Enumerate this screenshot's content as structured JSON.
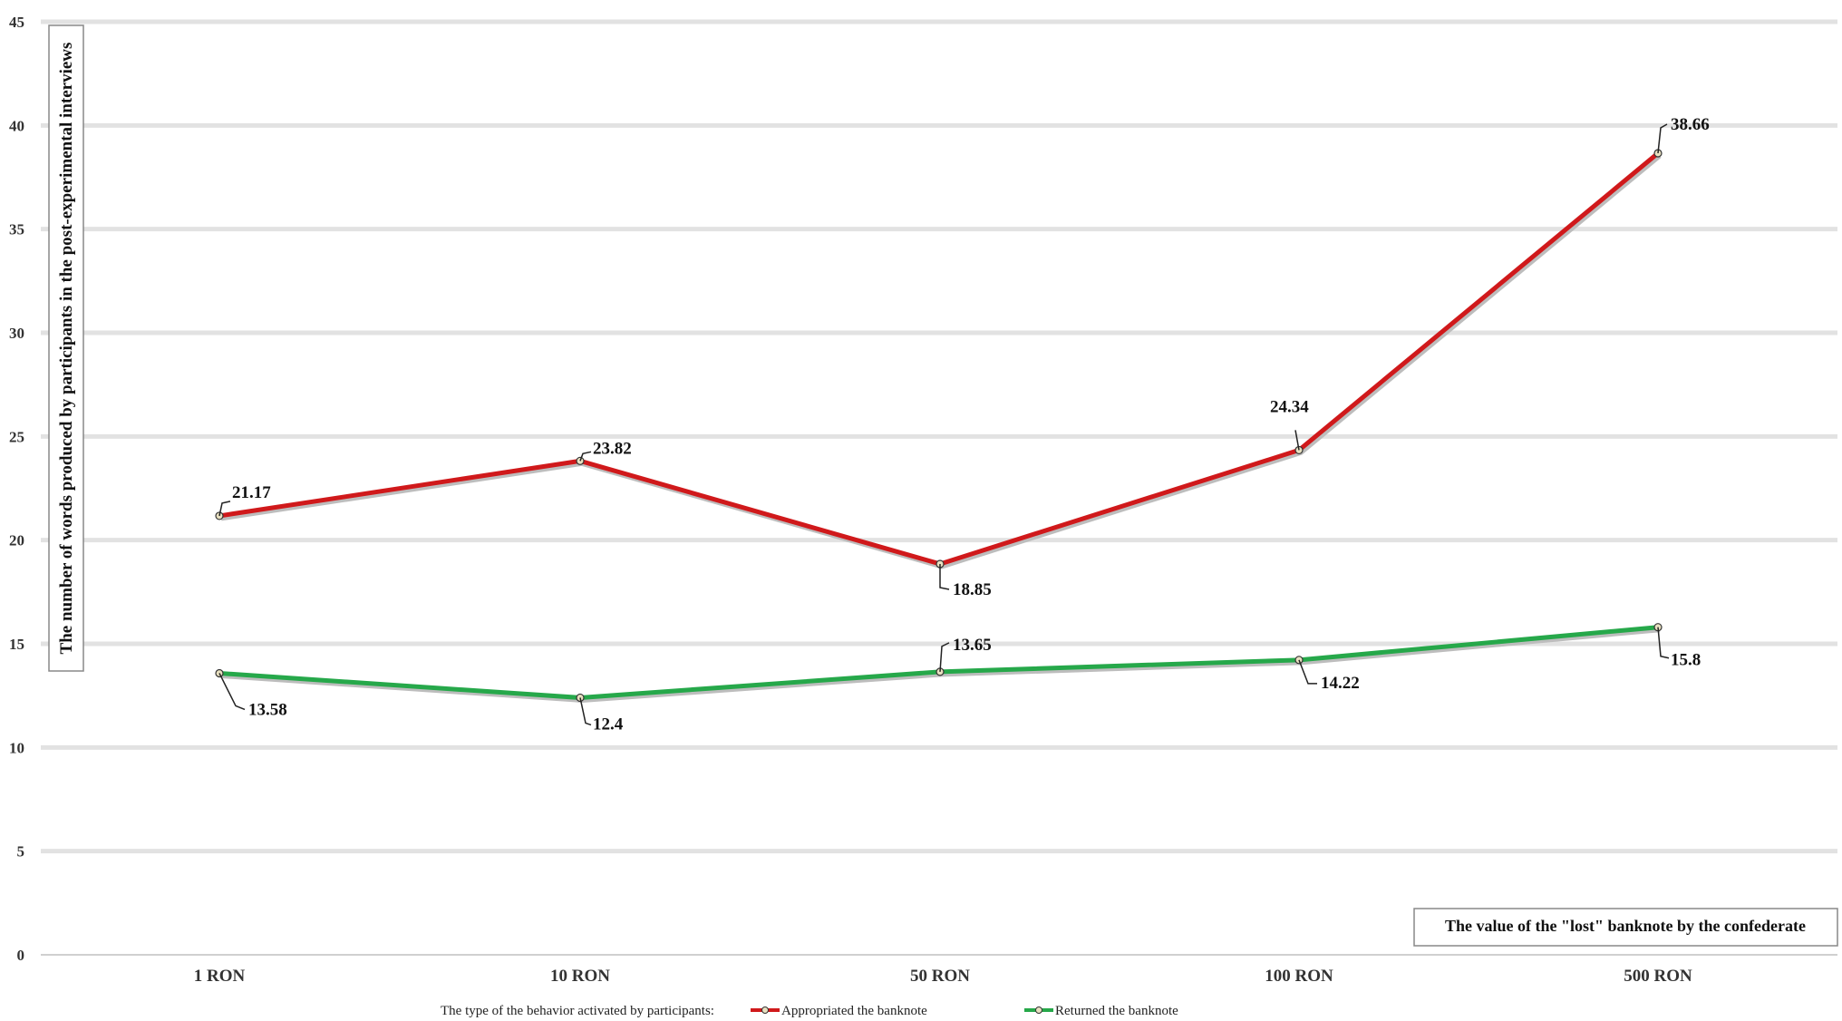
{
  "chart_data": {
    "type": "line",
    "categories": [
      "1 RON",
      "10 RON",
      "50 RON",
      "100 RON",
      "500 RON"
    ],
    "series": [
      {
        "name": "Appropriated the banknote",
        "values": [
          21.17,
          23.82,
          18.85,
          24.34,
          38.66
        ],
        "color": "#d0191b"
      },
      {
        "name": "Returned the banknote",
        "values": [
          13.58,
          12.4,
          13.65,
          14.22,
          15.8
        ],
        "color": "#26a84a"
      }
    ],
    "labels": {
      "appropriated": [
        "21.17",
        "23.82",
        "18.85",
        "24.34",
        "38.66"
      ],
      "returned": [
        "13.58",
        "12.4",
        "13.65",
        "14.22",
        "15.8"
      ]
    },
    "ylabel": "The number of words produced by participants in the post-experimental interviews",
    "xlabel": "The value of the \"lost\" banknote by the confederate",
    "ylim": [
      0,
      45
    ],
    "yticks": [
      "0",
      "5",
      "10",
      "15",
      "20",
      "25",
      "30",
      "35",
      "40",
      "45"
    ],
    "grid": true,
    "legend_title": "The type of the behavior activated by participants:",
    "legend_position": "bottom"
  }
}
